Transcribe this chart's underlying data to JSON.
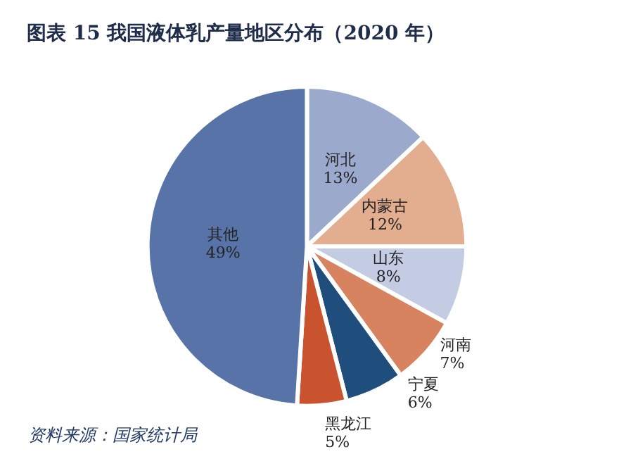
{
  "chart_data": {
    "type": "pie",
    "title": "图表 15 我国液体乳产量地区分布（2020 年）",
    "categories": [
      "河北",
      "内蒙古",
      "山东",
      "河南",
      "宁夏",
      "黑龙江",
      "其他"
    ],
    "values": [
      13,
      12,
      8,
      7,
      6,
      5,
      49
    ],
    "value_labels": [
      "13%",
      "12%",
      "8%",
      "7%",
      "6%",
      "5%",
      "49%"
    ],
    "colors": [
      "#9aa9cc",
      "#e2ae8f",
      "#c4cce4",
      "#d8835f",
      "#1f4e7d",
      "#c9532f",
      "#5773a7"
    ],
    "legend": false,
    "annotations": [
      "资料来源：国家统计局"
    ]
  }
}
